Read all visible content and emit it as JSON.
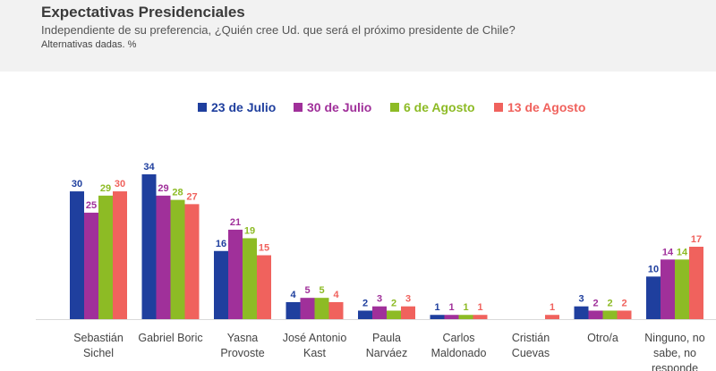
{
  "header": {
    "title": "Expectativas Presidenciales",
    "subtitle": "Independiente de su preferencia, ¿Quién cree Ud. que será el próximo presidente de Chile?",
    "note": "Alternativas dadas. %"
  },
  "chart_data": {
    "type": "bar",
    "categories": [
      [
        "Sebastián",
        "Sichel"
      ],
      [
        "Gabriel Boric"
      ],
      [
        "Yasna",
        "Provoste"
      ],
      [
        "José Antonio",
        "Kast"
      ],
      [
        "Paula",
        "Narváez"
      ],
      [
        "Carlos",
        "Maldonado"
      ],
      [
        "Cristián",
        "Cuevas"
      ],
      [
        "Otro/a"
      ],
      [
        "Ninguno, no",
        "sabe, no",
        "responde"
      ]
    ],
    "series": [
      {
        "name": "23 de Julio",
        "color": "#1f3f9e",
        "values": [
          30,
          34,
          16,
          4,
          2,
          1,
          null,
          3,
          10
        ]
      },
      {
        "name": "30 de Julio",
        "color": "#a0309a",
        "values": [
          25,
          29,
          21,
          5,
          3,
          1,
          null,
          2,
          14
        ]
      },
      {
        "name": "6 de Agosto",
        "color": "#8dbb25",
        "values": [
          29,
          28,
          19,
          5,
          2,
          1,
          null,
          2,
          14
        ]
      },
      {
        "name": "13 de Agosto",
        "color": "#f0625d",
        "values": [
          30,
          27,
          15,
          4,
          3,
          1,
          1,
          2,
          17
        ]
      }
    ],
    "legend_position": "top",
    "ylim": [
      0,
      34
    ],
    "grid": false
  }
}
